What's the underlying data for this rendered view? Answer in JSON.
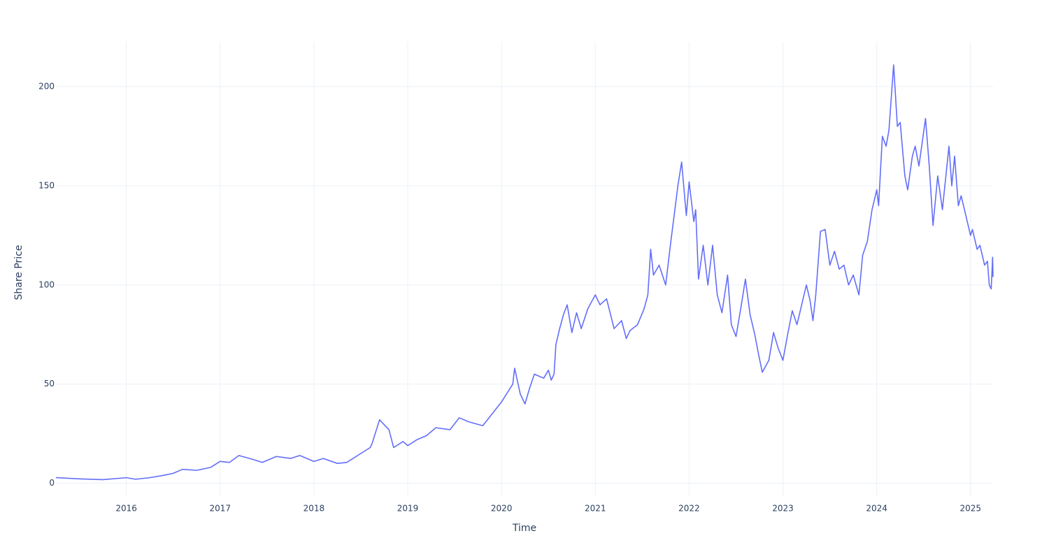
{
  "chart_data": {
    "type": "line",
    "xlabel": "Time",
    "ylabel": "Share Price",
    "color": "#636efa",
    "grid": true,
    "xlim": [
      2015.25,
      2025.24
    ],
    "xticks": [
      2016,
      2017,
      2018,
      2019,
      2020,
      2021,
      2022,
      2023,
      2024,
      2025
    ],
    "ylim": [
      -6.5,
      222.6
    ],
    "yticks": [
      0,
      50,
      100,
      150,
      200
    ],
    "x": [
      2015.25,
      2015.5,
      2015.75,
      2016.0,
      2016.1,
      2016.25,
      2016.4,
      2016.5,
      2016.6,
      2016.75,
      2016.9,
      2017.0,
      2017.1,
      2017.2,
      2017.35,
      2017.45,
      2017.6,
      2017.75,
      2017.85,
      2018.0,
      2018.1,
      2018.25,
      2018.35,
      2018.5,
      2018.6,
      2018.62,
      2018.7,
      2018.8,
      2018.85,
      2018.95,
      2019.0,
      2019.1,
      2019.2,
      2019.3,
      2019.45,
      2019.55,
      2019.65,
      2019.8,
      2019.9,
      2020.0,
      2020.08,
      2020.12,
      2020.14,
      2020.2,
      2020.25,
      2020.3,
      2020.35,
      2020.45,
      2020.5,
      2020.53,
      2020.56,
      2020.58,
      2020.62,
      2020.66,
      2020.7,
      2020.75,
      2020.8,
      2020.85,
      2020.92,
      2021.0,
      2021.05,
      2021.12,
      2021.2,
      2021.28,
      2021.33,
      2021.37,
      2021.45,
      2021.52,
      2021.56,
      2021.59,
      2021.62,
      2021.68,
      2021.75,
      2021.8,
      2021.88,
      2021.92,
      2021.97,
      2022.0,
      2022.05,
      2022.07,
      2022.1,
      2022.15,
      2022.2,
      2022.25,
      2022.3,
      2022.35,
      2022.41,
      2022.45,
      2022.5,
      2022.55,
      2022.6,
      2022.65,
      2022.7,
      2022.74,
      2022.78,
      2022.85,
      2022.9,
      2022.95,
      2023.0,
      2023.05,
      2023.1,
      2023.15,
      2023.2,
      2023.25,
      2023.29,
      2023.32,
      2023.35,
      2023.4,
      2023.45,
      2023.5,
      2023.55,
      2023.6,
      2023.65,
      2023.7,
      2023.75,
      2023.81,
      2023.85,
      2023.9,
      2023.95,
      2024.0,
      2024.02,
      2024.06,
      2024.1,
      2024.13,
      2024.18,
      2024.22,
      2024.25,
      2024.3,
      2024.33,
      2024.38,
      2024.41,
      2024.45,
      2024.52,
      2024.56,
      2024.6,
      2024.65,
      2024.7,
      2024.77,
      2024.8,
      2024.83,
      2024.87,
      2024.9,
      2024.95,
      2025.0,
      2025.02,
      2025.07,
      2025.1,
      2025.15,
      2025.18,
      2025.2,
      2025.22,
      2025.23,
      2025.235,
      2025.24
    ],
    "values": [
      2.8,
      2.2,
      1.8,
      2.8,
      2.0,
      2.8,
      4,
      5,
      7,
      6.5,
      8,
      11,
      10.5,
      14,
      12,
      10.5,
      13.5,
      12.5,
      14,
      11,
      12.5,
      10,
      10.5,
      15,
      18,
      20,
      32,
      27,
      18,
      21,
      19,
      22,
      24,
      28,
      27,
      33,
      31,
      29,
      35,
      41,
      47,
      50,
      58,
      45,
      40,
      48,
      55,
      53,
      57,
      52,
      55,
      70,
      78,
      85,
      90,
      76,
      86,
      78,
      88,
      95,
      90,
      93,
      78,
      82,
      73,
      77,
      80,
      88,
      95,
      118,
      105,
      110,
      100,
      120,
      150,
      162,
      135,
      152,
      132,
      138,
      103,
      120,
      100,
      120,
      95,
      86,
      105,
      80,
      74,
      88,
      103,
      85,
      75,
      65,
      56,
      62,
      76,
      68,
      62,
      75,
      87,
      80,
      90,
      100,
      92,
      82,
      95,
      127,
      128,
      110,
      117,
      108,
      110,
      100,
      105,
      95,
      115,
      122,
      138,
      148,
      140,
      175,
      170,
      178,
      211,
      180,
      182,
      155,
      148,
      165,
      170,
      160,
      184,
      160,
      130,
      155,
      138,
      170,
      150,
      165,
      140,
      145,
      135,
      125,
      128,
      118,
      120,
      110,
      112,
      100,
      98,
      108,
      114,
      104
    ]
  }
}
